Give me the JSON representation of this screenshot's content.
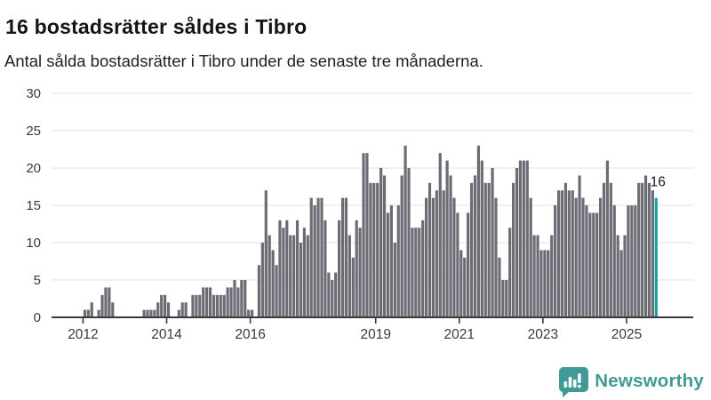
{
  "header": {
    "title": "16 bostadsrätter såldes i Tibro",
    "subtitle": "Antal sålda bostadsrätter i Tibro under de senaste tre månaderna."
  },
  "chart_data": {
    "type": "bar",
    "title": "16 bostadsrätter såldes i Tibro",
    "xlabel": "",
    "ylabel": "",
    "ylim": [
      0,
      30
    ],
    "y_ticks": [
      0,
      5,
      10,
      15,
      20,
      25,
      30
    ],
    "grid": true,
    "start_month": "2011-06",
    "end_month": "2025-09",
    "x_ticks": [
      {
        "label": "2012",
        "month_index": 7
      },
      {
        "label": "2014",
        "month_index": 31
      },
      {
        "label": "2016",
        "month_index": 55
      },
      {
        "label": "2019",
        "month_index": 91
      },
      {
        "label": "2021",
        "month_index": 115
      },
      {
        "label": "2023",
        "month_index": 139
      },
      {
        "label": "2025",
        "month_index": 163
      }
    ],
    "values": [
      0,
      0,
      0,
      0,
      0,
      0,
      0,
      1,
      1,
      2,
      0,
      1,
      3,
      4,
      4,
      2,
      0,
      0,
      0,
      0,
      0,
      0,
      0,
      0,
      1,
      1,
      1,
      1,
      2,
      3,
      3,
      2,
      0,
      0,
      1,
      2,
      2,
      0,
      3,
      3,
      3,
      4,
      4,
      4,
      3,
      3,
      3,
      3,
      4,
      4,
      5,
      4,
      5,
      5,
      1,
      1,
      0,
      7,
      10,
      17,
      11,
      9,
      7,
      13,
      12,
      13,
      11,
      11,
      13,
      10,
      12,
      11,
      16,
      15,
      16,
      16,
      13,
      6,
      5,
      6,
      13,
      16,
      16,
      11,
      8,
      13,
      12,
      22,
      22,
      18,
      18,
      18,
      20,
      19,
      14,
      15,
      10,
      15,
      19,
      23,
      20,
      12,
      12,
      12,
      13,
      16,
      18,
      16,
      17,
      22,
      17,
      21,
      19,
      16,
      14,
      9,
      8,
      14,
      18,
      19,
      23,
      21,
      18,
      18,
      20,
      16,
      8,
      5,
      5,
      12,
      18,
      20,
      21,
      21,
      21,
      16,
      11,
      11,
      9,
      9,
      9,
      11,
      15,
      17,
      17,
      18,
      17,
      17,
      16,
      19,
      16,
      15,
      14,
      14,
      14,
      16,
      18,
      21,
      18,
      15,
      11,
      9,
      11,
      15,
      15,
      15,
      18,
      18,
      19,
      18,
      17,
      16
    ],
    "highlight_last_bar": true,
    "last_value_label": "16",
    "colors": {
      "bar": "#6c6c75",
      "highlight": "#14a2a0",
      "grid": "#e8e8e8",
      "axis": "#3a3a3a",
      "tick_label": "#3a3a3a",
      "annotation": "#191919"
    }
  },
  "logo": {
    "text": "Newsworthy",
    "color": "#3f9b95",
    "icon": "newsworthy-speech-bubble-chart-icon"
  }
}
